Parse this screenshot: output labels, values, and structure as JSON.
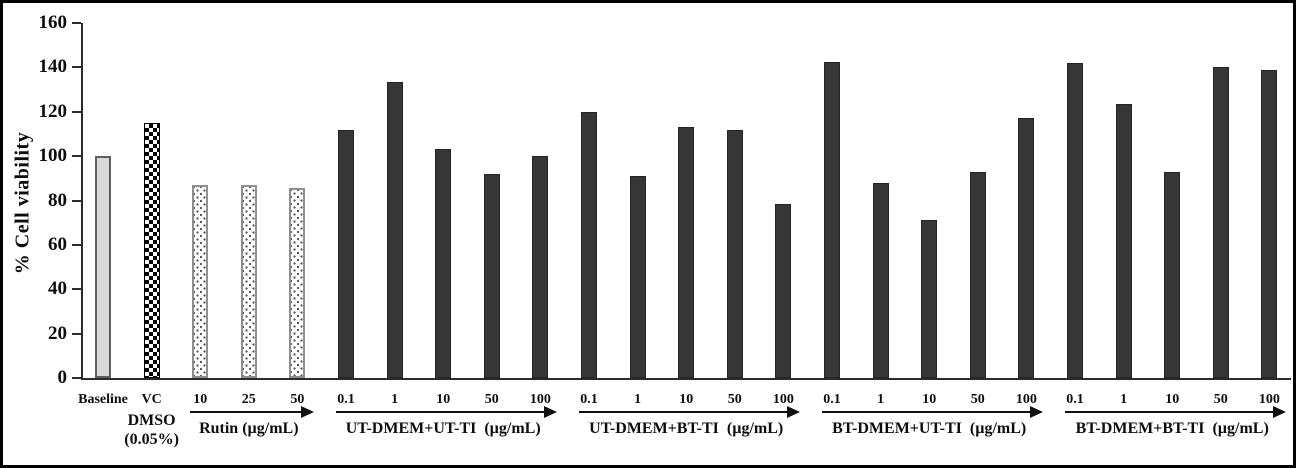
{
  "figure": {
    "background": "#ffffff",
    "frame_color": "#000000"
  },
  "chart_data": {
    "type": "bar",
    "title": "",
    "xlabel": "",
    "ylabel": "% Cell viability",
    "ylim": [
      0,
      160
    ],
    "ytick_step": 20,
    "yticks": [
      "0",
      "20",
      "40",
      "60",
      "80",
      "100",
      "120",
      "140",
      "160"
    ],
    "grid": false,
    "legend": "none",
    "axis_color": "#2b2b2b",
    "bar_styles": {
      "gray": {
        "fill": "#d9d9d9",
        "border": "#5f5f5f",
        "pattern": "solid light gray"
      },
      "checker": {
        "fill": "#000000 on #ffffff",
        "border": "#000000",
        "pattern": "checkerboard"
      },
      "dotted": {
        "fill": "#ffffff",
        "border": "#8f8f8f",
        "pattern": "small gray dots"
      },
      "dark": {
        "fill": "#363636",
        "border": "#242424",
        "pattern": "solid dark gray"
      }
    },
    "groups": [
      {
        "name": "baseline",
        "style": "gray",
        "xticks": [
          "Baseline"
        ],
        "values": [
          100
        ],
        "arrow": false
      },
      {
        "name": "vehicle-control",
        "style": "checker",
        "xticks": [
          "VC"
        ],
        "values": [
          115
        ],
        "arrow": false,
        "sub_label_lines": [
          "DMSO",
          "(0.05%)"
        ]
      },
      {
        "name": "rutin",
        "style": "dotted",
        "xticks": [
          "10",
          "25",
          "50"
        ],
        "values": [
          87,
          87,
          85.5
        ],
        "arrow": true,
        "sub_label": "Rutin (µg/mL)"
      },
      {
        "name": "ut-dmem-ut-ti",
        "style": "dark",
        "xticks": [
          "0.1",
          "1",
          "10",
          "50",
          "100"
        ],
        "values": [
          112,
          133.5,
          103,
          92,
          100
        ],
        "arrow": true,
        "sub_label": "UT-DMEM+UT-TI  (µg/mL)"
      },
      {
        "name": "ut-dmem-bt-ti",
        "style": "dark",
        "xticks": [
          "0.1",
          "1",
          "10",
          "50",
          "100"
        ],
        "values": [
          120,
          91,
          113,
          112,
          78.5
        ],
        "arrow": true,
        "sub_label": "UT-DMEM+BT-TI  (µg/mL)"
      },
      {
        "name": "bt-dmem-ut-ti",
        "style": "dark",
        "xticks": [
          "0.1",
          "1",
          "10",
          "50",
          "100"
        ],
        "values": [
          142.5,
          88,
          71,
          93,
          117
        ],
        "arrow": true,
        "sub_label": "BT-DMEM+UT-TI  (µg/mL)"
      },
      {
        "name": "bt-dmem-bt-ti",
        "style": "dark",
        "xticks": [
          "0.1",
          "1",
          "10",
          "50",
          "100"
        ],
        "values": [
          142,
          123.5,
          93,
          140,
          139
        ],
        "arrow": true,
        "sub_label": "BT-DMEM+BT-TI  (µg/mL)"
      }
    ]
  }
}
